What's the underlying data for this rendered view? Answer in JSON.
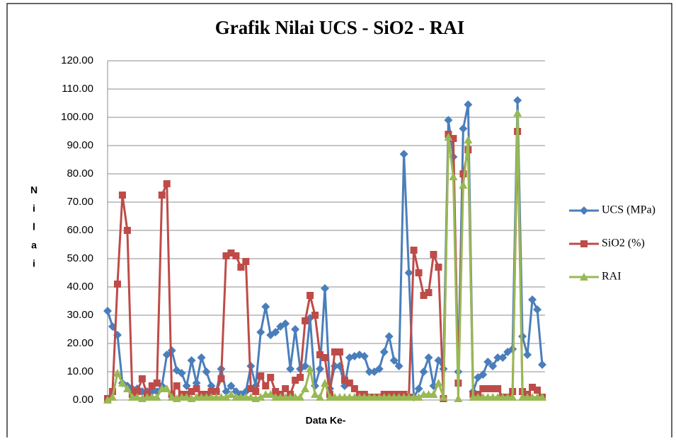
{
  "chart_data": {
    "type": "line",
    "title": "Grafik Nilai UCS - SiO2 - RAI",
    "x_label": "Data Ke-",
    "y_label": "Nilai",
    "ylim": [
      0,
      120
    ],
    "yticks": [
      {
        "value": 0,
        "label": "0.00"
      },
      {
        "value": 10,
        "label": "10.00"
      },
      {
        "value": 20,
        "label": "20.00"
      },
      {
        "value": 30,
        "label": "30.00"
      },
      {
        "value": 40,
        "label": "40.00"
      },
      {
        "value": 50,
        "label": "50.00"
      },
      {
        "value": 60,
        "label": "60.00"
      },
      {
        "value": 70,
        "label": "70.00"
      },
      {
        "value": 80,
        "label": "80.00"
      },
      {
        "value": 90,
        "label": "90.00"
      },
      {
        "value": 100,
        "label": "100.00"
      },
      {
        "value": 110,
        "label": "110.00"
      },
      {
        "value": 120,
        "label": "120.00"
      }
    ],
    "grid": true,
    "legend": "right",
    "series": [
      {
        "name": "UCS (MPa)",
        "color": "#4a7ebb",
        "marker": "diamond",
        "values": [
          31.5,
          26,
          23,
          6,
          5,
          4,
          4,
          3,
          3,
          3,
          3,
          5,
          16,
          17.5,
          10.5,
          9.5,
          5,
          14,
          6,
          15,
          10,
          5,
          3,
          11,
          3,
          5,
          3,
          2,
          3,
          12,
          5,
          24,
          33,
          23,
          24,
          26,
          27,
          11,
          25,
          11,
          12,
          29,
          5,
          11,
          39.5,
          4,
          12,
          12,
          5,
          15,
          15.5,
          16,
          15.5,
          10,
          10,
          11,
          17,
          22.5,
          14,
          12,
          87,
          45,
          1,
          4,
          10,
          15,
          5,
          14,
          11,
          99,
          86,
          10,
          96,
          104.5,
          3,
          8,
          9,
          13.5,
          12,
          15,
          15,
          17,
          18,
          106,
          22.5,
          16,
          35.5,
          32,
          12.5
        ]
      },
      {
        "name": "SiO2 (%)",
        "color": "#be4b48",
        "marker": "square",
        "values": [
          0.5,
          3,
          41,
          72.5,
          60,
          2,
          3,
          7.5,
          2,
          5,
          6,
          72.5,
          76.5,
          2,
          5,
          2,
          2,
          3,
          4,
          2,
          2,
          3,
          3,
          7.5,
          51,
          52,
          51,
          47,
          49,
          4,
          3,
          8.5,
          5,
          8,
          3,
          2,
          4,
          2,
          7,
          8,
          28,
          37,
          30,
          16,
          15,
          2,
          17,
          17,
          7,
          6,
          4,
          2,
          2,
          1,
          1,
          1,
          2,
          2,
          2,
          2,
          2,
          1,
          53,
          45,
          37,
          38,
          51.5,
          47,
          0.5,
          94,
          92.5,
          6,
          80,
          88.5,
          2,
          2,
          4,
          4,
          4,
          4,
          1,
          1,
          3,
          95,
          3,
          2,
          4.5,
          3.5,
          1
        ]
      },
      {
        "name": "RAI",
        "color": "#98b954",
        "marker": "triangle",
        "values": [
          0,
          1,
          9.5,
          6,
          4,
          1,
          1,
          0.5,
          1,
          1,
          1,
          4,
          4,
          1,
          0.5,
          1,
          1,
          0.5,
          1,
          1,
          1,
          1,
          1,
          1,
          1,
          2,
          1,
          1,
          1,
          1,
          0.5,
          1,
          2,
          2,
          1,
          1,
          1,
          1,
          1,
          1,
          4,
          11,
          2,
          1,
          6,
          1,
          1,
          1,
          1,
          1,
          1,
          1,
          1,
          1,
          1,
          1,
          1,
          1,
          1,
          1,
          1,
          1,
          1,
          1,
          2,
          2,
          2,
          6,
          1,
          93,
          79,
          0.5,
          76,
          92,
          1,
          1,
          1,
          1,
          1,
          1,
          1,
          1,
          1,
          101.5,
          1,
          1,
          1,
          1,
          1
        ]
      }
    ]
  }
}
